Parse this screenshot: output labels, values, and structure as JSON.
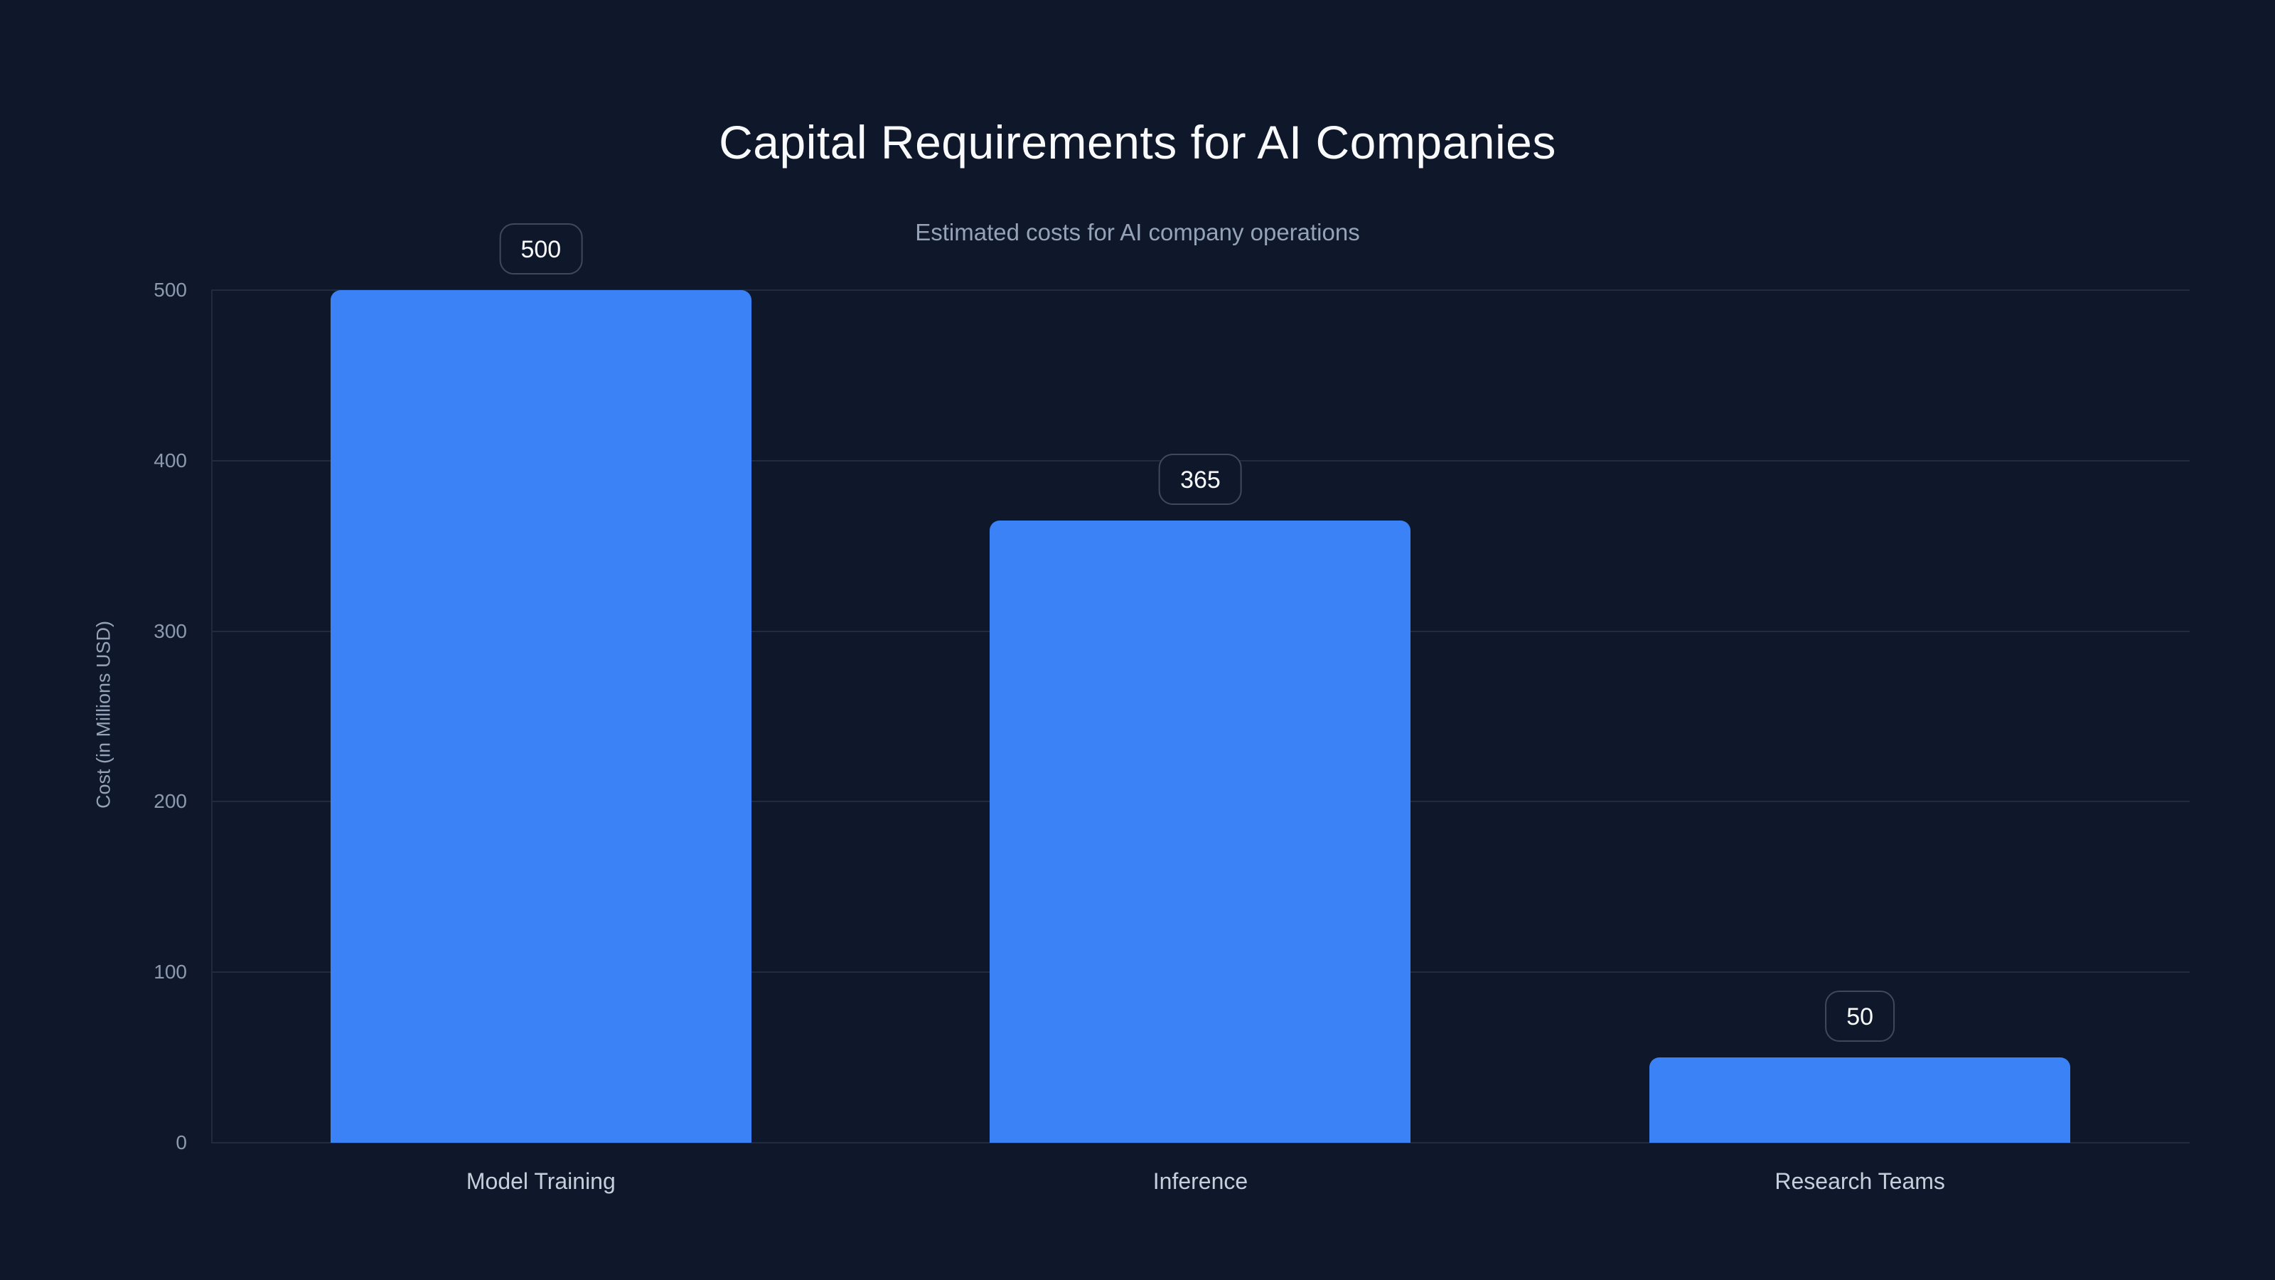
{
  "chart_data": {
    "type": "bar",
    "title": "Capital Requirements for AI Companies",
    "subtitle": "Estimated costs for AI company operations",
    "ylabel": "Cost (in Millions USD)",
    "xlabel": "",
    "categories": [
      "Model Training",
      "Inference",
      "Research Teams"
    ],
    "values": [
      500,
      365,
      50
    ],
    "data_labels": [
      "500",
      "365",
      "50"
    ],
    "yticks": [
      "0",
      "100",
      "200",
      "300",
      "400",
      "500"
    ],
    "ylim": [
      0,
      500
    ],
    "grid": "horizontal",
    "legend": "none",
    "colors": {
      "background": "#0f172a",
      "bar": "#3b82f6",
      "gridline": "#1f2b40",
      "axis_line": "#1f2b40",
      "title_text": "#f8fafc",
      "subtitle_text": "#94a3b8",
      "tick_text": "#8b9aae",
      "category_text": "#c6cedb",
      "badge_text": "#f8fafc",
      "badge_border": "#3d4a5e",
      "badge_background": "#0f172a"
    }
  }
}
